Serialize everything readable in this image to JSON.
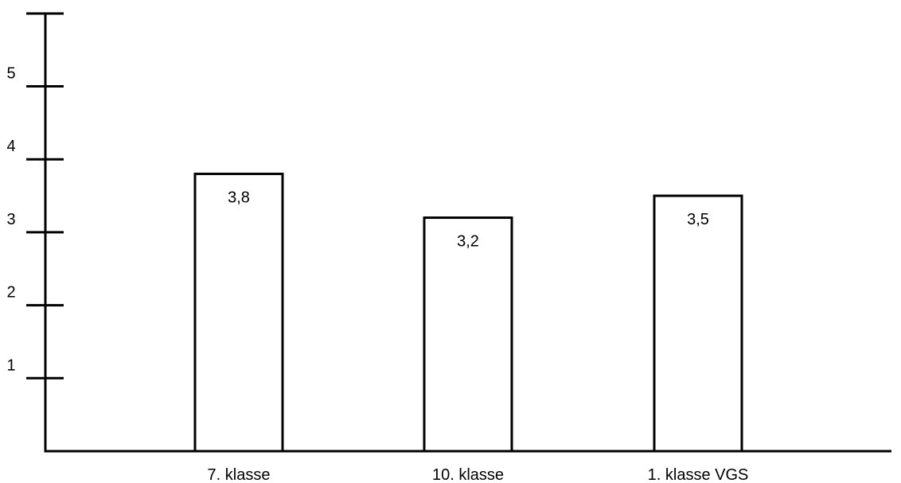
{
  "chart_data": {
    "type": "bar",
    "title": "",
    "xlabel": "",
    "ylabel": "",
    "categories": [
      "7. klasse",
      "10. klasse",
      "1. klasse VGS"
    ],
    "values": [
      3.8,
      3.2,
      3.5
    ],
    "value_labels": [
      "3,8",
      "3,2",
      "3,5"
    ],
    "yticks": [
      1,
      2,
      3,
      4,
      5
    ],
    "ytick_labels": [
      "1",
      "2",
      "3",
      "4",
      "5"
    ],
    "ylim": [
      0,
      6
    ],
    "grid": false,
    "legend": "none",
    "colors": {
      "bar_fill": "#ffffff",
      "bar_stroke": "#000000",
      "axis": "#000000"
    }
  }
}
